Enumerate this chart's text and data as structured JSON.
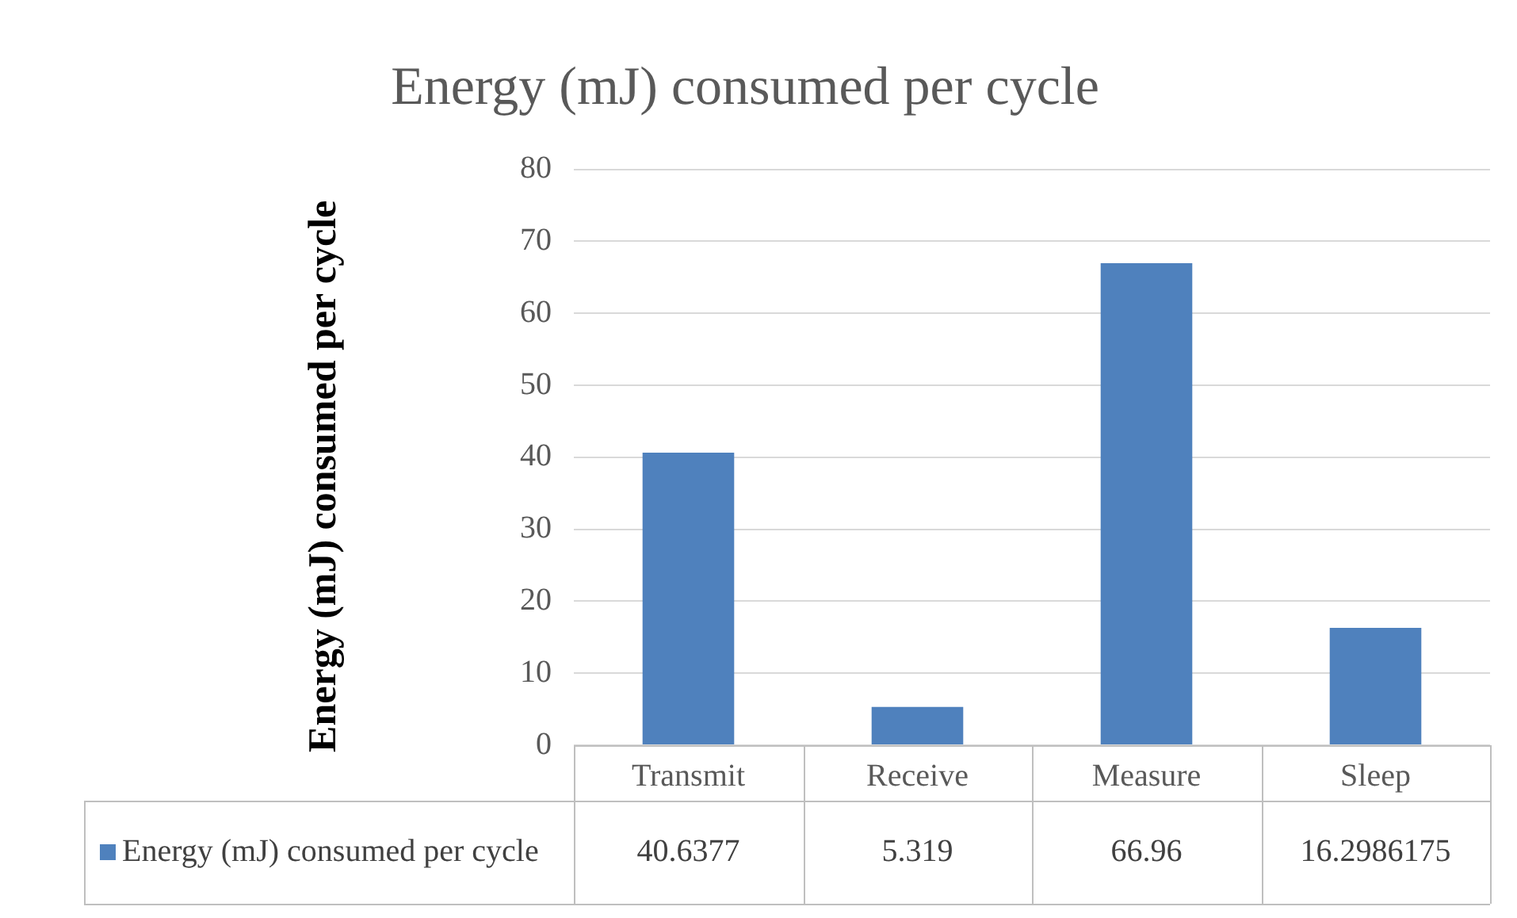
{
  "chart_data": {
    "type": "bar",
    "title": "Energy (mJ) consumed per cycle",
    "ylabel": "Energy (mJ) consumed per cycle",
    "categories": [
      "Transmit",
      "Receive",
      "Measure",
      "Sleep"
    ],
    "series": [
      {
        "name": "Energy (mJ) consumed per cycle",
        "color": "#4f81bd",
        "values": [
          40.6377,
          5.319,
          66.96,
          16.2986175
        ]
      }
    ],
    "ylim": [
      0,
      80
    ],
    "yticks": [
      0,
      10,
      20,
      30,
      40,
      50,
      60,
      70,
      80
    ],
    "grid": "y",
    "data_labels": true,
    "legend": "bottom"
  }
}
